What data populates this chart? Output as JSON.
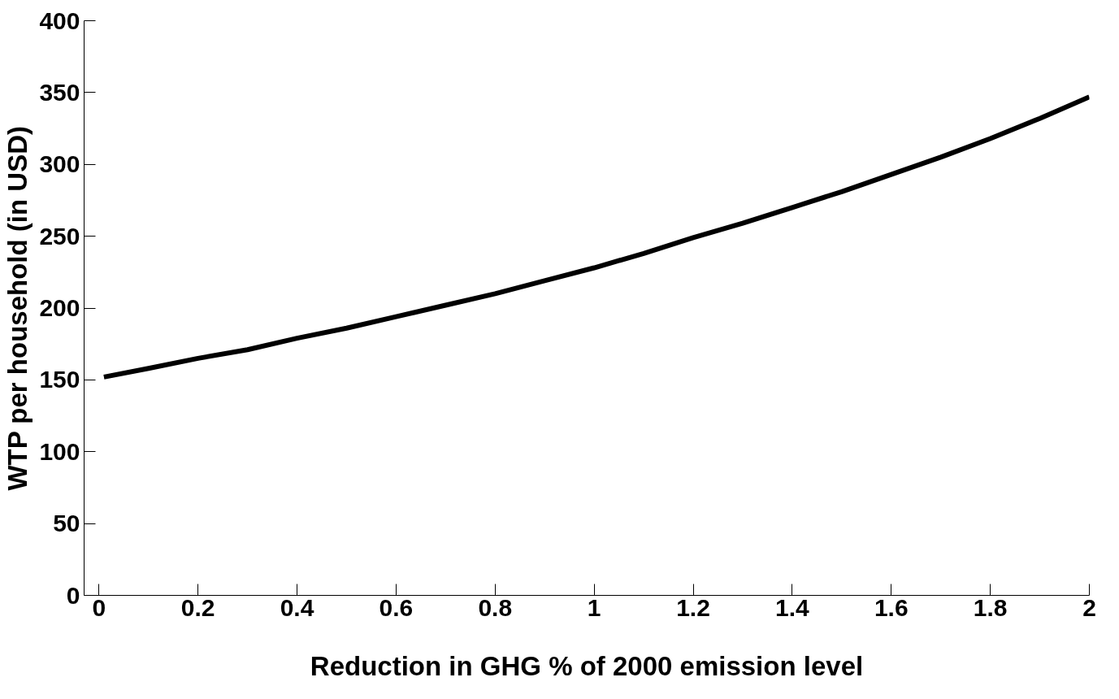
{
  "chart_data": {
    "type": "line",
    "xlabel": "Reduction in GHG % of 2000 emission level",
    "ylabel": "WTP per household (in USD)",
    "x": [
      0.01,
      0.1,
      0.2,
      0.3,
      0.4,
      0.5,
      0.6,
      0.7,
      0.8,
      0.9,
      1.0,
      1.1,
      1.2,
      1.3,
      1.4,
      1.5,
      1.6,
      1.7,
      1.8,
      1.9,
      2.0
    ],
    "series": [
      {
        "color": "#000000",
        "values": [
          152,
          158,
          165,
          171,
          179,
          186,
          194,
          202,
          210,
          219,
          228,
          238,
          249,
          259,
          270,
          281,
          293,
          305,
          318,
          332,
          347
        ]
      }
    ],
    "xlim": [
      -0.03,
      2.0
    ],
    "ylim": [
      0,
      400
    ],
    "xticks": [
      0,
      0.2,
      0.4,
      0.6,
      0.8,
      1,
      1.2,
      1.4,
      1.6,
      1.8,
      2
    ],
    "yticks": [
      0,
      50,
      100,
      150,
      200,
      250,
      300,
      350,
      400
    ],
    "grid": false,
    "marker": "none",
    "line_style": "solid"
  }
}
